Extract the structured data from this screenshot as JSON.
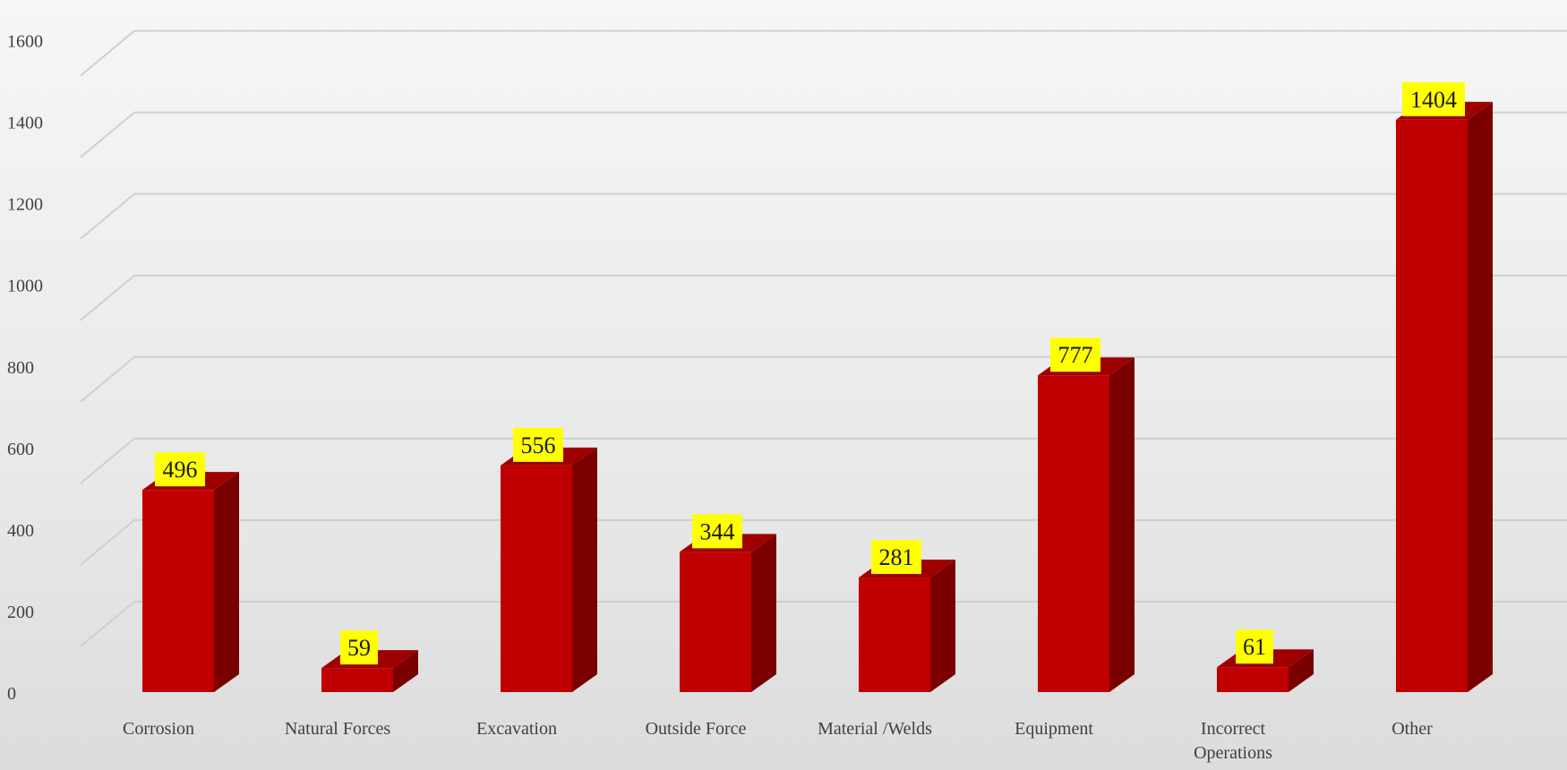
{
  "colors": {
    "bar_front": "#c00000",
    "bar_side": "#7a0000",
    "bar_top": "#9e0000",
    "label_bg": "#ffff00",
    "grid": "#cfcfcf"
  },
  "chart_data": {
    "type": "bar",
    "style": "3d-clustered-column",
    "title": "",
    "xlabel": "",
    "ylabel": "",
    "categories": [
      "Corrosion",
      "Natural Forces",
      "Excavation",
      "Outside Force",
      "Material /Welds",
      "Equipment",
      "Incorrect Operations",
      "Other"
    ],
    "category_lines": [
      [
        "Corrosion"
      ],
      [
        "Natural Forces"
      ],
      [
        "Excavation"
      ],
      [
        "Outside Force"
      ],
      [
        "Material /Welds"
      ],
      [
        "Equipment"
      ],
      [
        "Incorrect",
        "Operations"
      ],
      [
        "Other"
      ]
    ],
    "values": [
      496,
      59,
      556,
      344,
      281,
      777,
      61,
      1404
    ],
    "data_labels": [
      "496",
      "59",
      "556",
      "344",
      "281",
      "777",
      "61",
      "1404"
    ],
    "ylim": [
      0,
      1600
    ],
    "yticks": [
      0,
      200,
      400,
      600,
      800,
      1000,
      1200,
      1400,
      1600
    ],
    "ytick_labels": [
      "0",
      "200",
      "400",
      "600",
      "800",
      "1000",
      "1200",
      "1400",
      "1600"
    ],
    "grid": true,
    "legend": "none"
  }
}
